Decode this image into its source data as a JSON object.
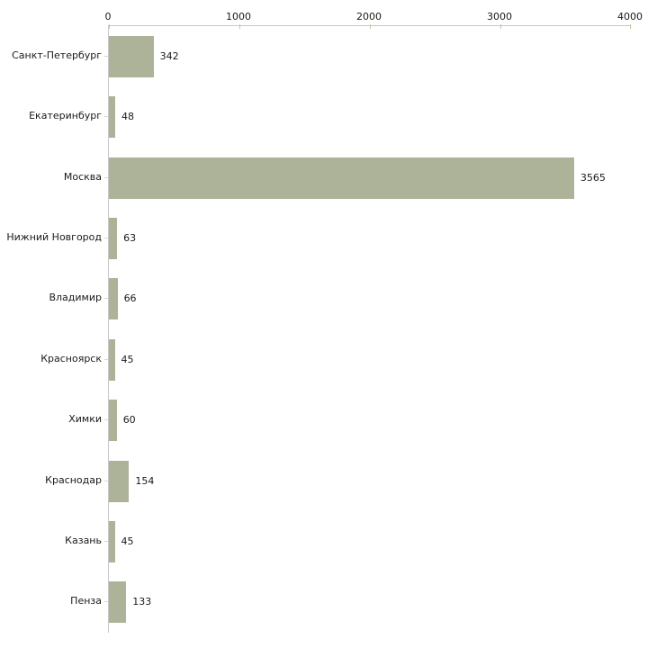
{
  "chart_data": {
    "type": "bar",
    "orientation": "horizontal",
    "title": "",
    "xlabel": "",
    "ylabel": "",
    "x_axis_position": "top",
    "xlim": [
      0,
      4000
    ],
    "x_ticks": [
      0,
      1000,
      2000,
      3000,
      4000
    ],
    "x_tick_labels": [
      "0",
      "1000",
      "2000",
      "3000",
      "4000"
    ],
    "grid": false,
    "legend": false,
    "categories": [
      "Санкт-Петербург",
      "Екатеринбург",
      "Москва",
      "Нижний Новгород",
      "Владимир",
      "Красноярск",
      "Химки",
      "Краснодар",
      "Казань",
      "Пенза"
    ],
    "values": [
      342,
      48,
      3565,
      63,
      66,
      45,
      60,
      154,
      45,
      133
    ],
    "value_labels": [
      "342",
      "48",
      "3565",
      "63",
      "66",
      "45",
      "60",
      "154",
      "45",
      "133"
    ],
    "colors": {
      "bar": "#acb399",
      "axis_line": "#c8c8c8",
      "x_tick_mark": "#c3c79f",
      "y_tick_mark": "#d7d8c8",
      "text": "#1a1a1a",
      "background": "#ffffff"
    }
  }
}
